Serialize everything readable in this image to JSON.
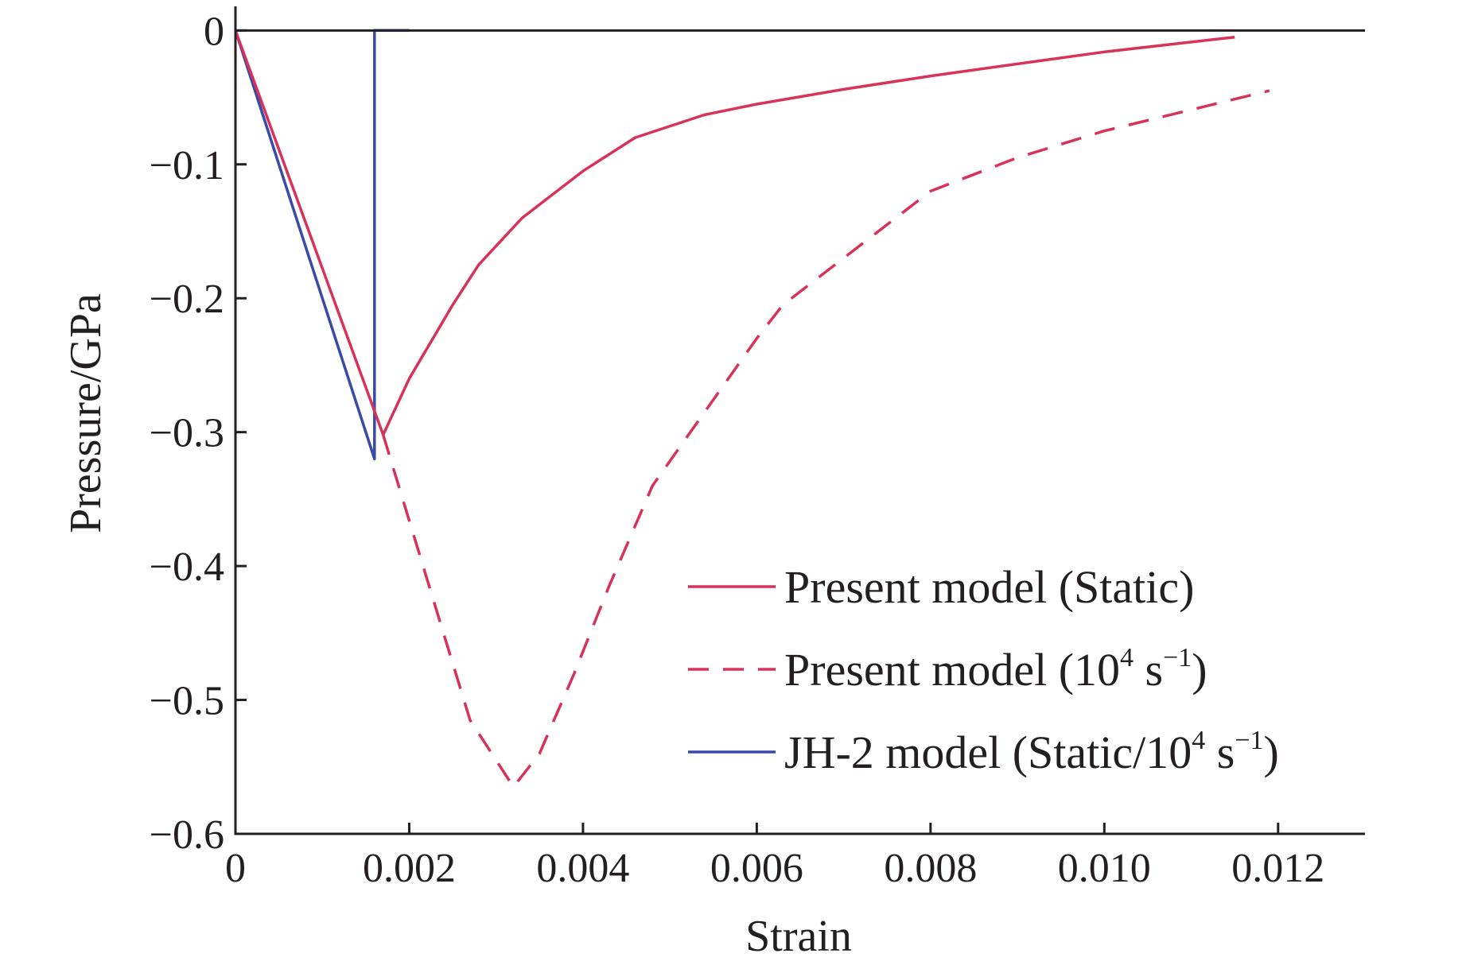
{
  "chart_data": {
    "type": "line",
    "xlabel": "Strain",
    "ylabel": "Pressure/GPa",
    "xlim": [
      0,
      0.013
    ],
    "ylim": [
      -0.6,
      0.018
    ],
    "x_ticks": [
      0,
      0.002,
      0.004,
      0.006,
      0.008,
      0.01,
      0.012
    ],
    "x_tick_labels": [
      "0",
      "0.002",
      "0.004",
      "0.006",
      "0.008",
      "0.010",
      "0.012"
    ],
    "y_ticks": [
      0,
      -0.1,
      -0.2,
      -0.3,
      -0.4,
      -0.5,
      -0.6
    ],
    "y_tick_labels": [
      "0",
      "−0.1",
      "−0.2",
      "−0.3",
      "−0.4",
      "−0.5",
      "−0.6"
    ],
    "grid": false,
    "legend_position": "bottom-right",
    "series": [
      {
        "name": "Present model (Static)",
        "legend_main": "Present model (Static)",
        "legend_sup1": "",
        "legend_mid": "",
        "legend_sup2": "",
        "legend_end": "",
        "color": "#d9325a",
        "dash": "solid",
        "x": [
          0,
          0.0017,
          0.002,
          0.0025,
          0.0028,
          0.0033,
          0.004,
          0.0046,
          0.0054,
          0.006,
          0.007,
          0.008,
          0.009,
          0.01,
          0.0115
        ],
        "y": [
          0,
          -0.302,
          -0.26,
          -0.205,
          -0.175,
          -0.14,
          -0.105,
          -0.08,
          -0.063,
          -0.055,
          -0.044,
          -0.034,
          -0.025,
          -0.016,
          -0.005
        ]
      },
      {
        "name": "Present model (10⁴ s⁻¹)",
        "legend_main": "Present model (10",
        "legend_sup1": "4",
        "legend_mid": " s",
        "legend_sup2": "−1",
        "legend_end": ")",
        "color": "#d9325a",
        "dash": "dashed",
        "x": [
          0.0017,
          0.0023,
          0.0027,
          0.0032,
          0.0035,
          0.0039,
          0.0043,
          0.0048,
          0.0054,
          0.006,
          0.0063,
          0.007,
          0.008,
          0.009,
          0.01,
          0.0119
        ],
        "y": [
          -0.302,
          -0.43,
          -0.515,
          -0.565,
          -0.54,
          -0.48,
          -0.415,
          -0.34,
          -0.285,
          -0.23,
          -0.205,
          -0.17,
          -0.12,
          -0.095,
          -0.075,
          -0.045
        ]
      },
      {
        "name": "JH-2 model (Static/10⁴ s⁻¹)",
        "legend_main": "JH-2 model (Static/10",
        "legend_sup1": "4",
        "legend_mid": " s",
        "legend_sup2": "−1",
        "legend_end": ")",
        "color": "#3a4aa8",
        "dash": "solid",
        "x": [
          0,
          0.0016,
          0.0016,
          0.002
        ],
        "y": [
          0,
          -0.32,
          0,
          0
        ]
      }
    ]
  }
}
